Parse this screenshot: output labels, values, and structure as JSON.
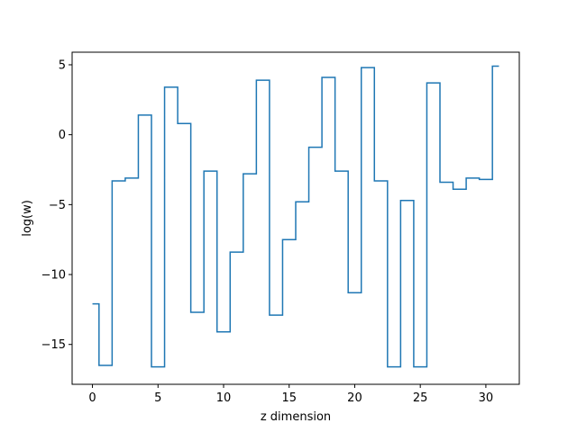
{
  "chart_data": {
    "type": "line",
    "drawstyle": "steps-mid",
    "title": "",
    "xlabel": "z dimension",
    "ylabel": "log(w)",
    "xlim": [
      -1.55,
      32.55
    ],
    "ylim": [
      -17.85,
      5.9
    ],
    "xticks": [
      0,
      5,
      10,
      15,
      20,
      25,
      30
    ],
    "xtick_labels": [
      "0",
      "5",
      "10",
      "15",
      "20",
      "25",
      "30"
    ],
    "yticks": [
      -15,
      -10,
      -5,
      0,
      5
    ],
    "ytick_labels": [
      "−15",
      "−10",
      "−5",
      "0",
      "5"
    ],
    "grid": false,
    "legend": "none",
    "line_color": "#1f77b4",
    "series": [
      {
        "x": [
          0,
          1,
          2,
          3,
          4,
          5,
          6,
          7,
          8,
          9,
          10,
          11,
          12,
          13,
          14,
          15,
          16,
          17,
          18,
          19,
          20,
          21,
          22,
          23,
          24,
          25,
          26,
          27,
          28,
          29,
          30,
          31
        ],
        "values": [
          -12.1,
          -16.5,
          -3.3,
          -3.1,
          1.4,
          -16.6,
          3.4,
          0.8,
          -12.7,
          -2.6,
          -14.1,
          -8.4,
          -2.8,
          3.9,
          -12.9,
          -7.5,
          -4.8,
          -0.9,
          4.1,
          -2.6,
          -11.3,
          4.8,
          -3.3,
          -16.6,
          -4.7,
          -16.6,
          3.7,
          -3.4,
          -3.9,
          -3.1,
          -3.2,
          4.9
        ]
      }
    ]
  }
}
